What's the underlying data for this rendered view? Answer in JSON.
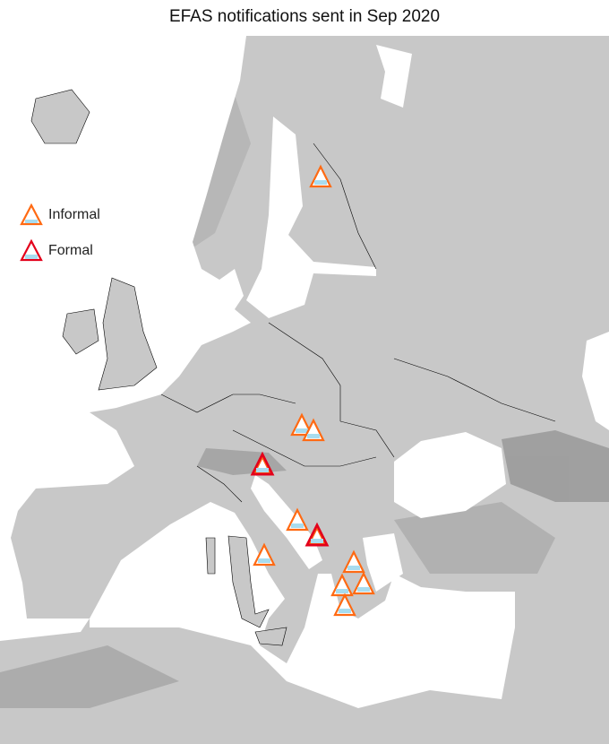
{
  "title": "EFAS notifications sent in Sep 2020",
  "legend": {
    "items": [
      {
        "label": "Informal",
        "stroke": "#ff6a13",
        "inner_stroke": "#ff6a13"
      },
      {
        "label": "Formal",
        "stroke": "#e3001b",
        "inner_stroke": "#ff6a13"
      }
    ]
  },
  "colors": {
    "land": "#c8c8c8",
    "sea": "#ffffff",
    "water_fill": "#a8dcef",
    "border": "#000000"
  },
  "icon": "flood-warning-triangle-icon"
}
